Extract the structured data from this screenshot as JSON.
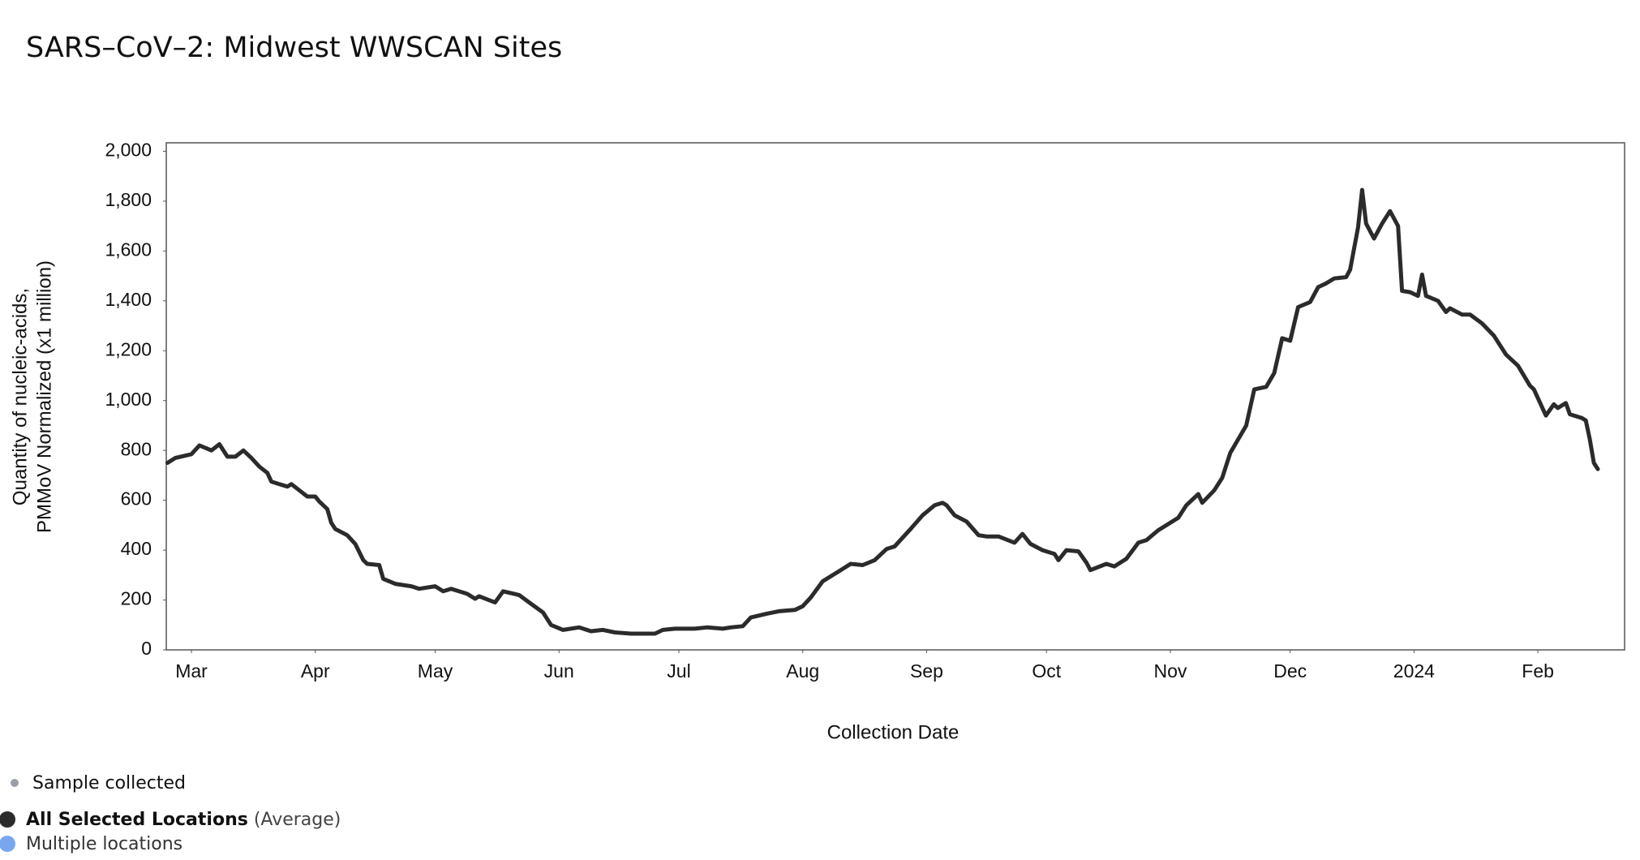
{
  "chart_data": {
    "type": "line",
    "title": "SARS–CoV–2: Midwest WWSCAN Sites",
    "x_label": "Collection Date",
    "y_label": [
      "Quantity of nucleic-acids,",
      "PMMoV Normalized (x1 million)"
    ],
    "xlim": [
      -6.3,
      358.7
    ],
    "xticks": [
      {
        "value": 0,
        "label": "Mar"
      },
      {
        "value": 31,
        "label": "Apr"
      },
      {
        "value": 61,
        "label": "May"
      },
      {
        "value": 92,
        "label": "Jun"
      },
      {
        "value": 122,
        "label": "Jul"
      },
      {
        "value": 153,
        "label": "Aug"
      },
      {
        "value": 184,
        "label": "Sep"
      },
      {
        "value": 214,
        "label": "Oct"
      },
      {
        "value": 245,
        "label": "Nov"
      },
      {
        "value": 275,
        "label": "Dec"
      },
      {
        "value": 306,
        "label": "2024"
      },
      {
        "value": 337,
        "label": "Feb"
      }
    ],
    "ylim": [
      0,
      2034
    ],
    "yticks": [
      0,
      200,
      400,
      600,
      800,
      {
        "value": 1000,
        "label": "1,000"
      },
      {
        "value": 1200,
        "label": "1,200"
      },
      {
        "value": 1400,
        "label": "1,400"
      },
      {
        "value": 1600,
        "label": "1,600"
      },
      {
        "value": 1800,
        "label": "1,800"
      },
      {
        "value": 2000,
        "label": "2,000"
      }
    ],
    "grid": false,
    "series": [
      {
        "name": "All Selected Locations",
        "name_suffix": "(Average)",
        "color": "#2b2b2b",
        "x": [
          -6,
          -4,
          0,
          2,
          5,
          7,
          9,
          11,
          13,
          15,
          17,
          19,
          20,
          22,
          24,
          25,
          27,
          29,
          31,
          32,
          34,
          35,
          36,
          39,
          41,
          43,
          44,
          47,
          48,
          51,
          55,
          57,
          61,
          63,
          65,
          69,
          71,
          72,
          76,
          78,
          82,
          85,
          88,
          90,
          93,
          97,
          100,
          103,
          106,
          110,
          116,
          118,
          121,
          126,
          129,
          133,
          135,
          138,
          140,
          144,
          147,
          151,
          153,
          155,
          158,
          162,
          165,
          168,
          171,
          174,
          176,
          180,
          183,
          186,
          188,
          189,
          191,
          194,
          197,
          199,
          202,
          206,
          208,
          210,
          213,
          216,
          217,
          219,
          222,
          224,
          225,
          229,
          231,
          234,
          237,
          239,
          242,
          244,
          247,
          249,
          252,
          253,
          256,
          258,
          260,
          264,
          266,
          269,
          271,
          273,
          275,
          277,
          280,
          282,
          284,
          286,
          289,
          290,
          292,
          293,
          294,
          296,
          298,
          300,
          302,
          303,
          305,
          307,
          308,
          309,
          312,
          314,
          315,
          318,
          320,
          323,
          326,
          329,
          332,
          335,
          336,
          339,
          341,
          342,
          344,
          345,
          348,
          349,
          350,
          351,
          352
        ],
        "values": [
          750,
          770,
          785,
          820,
          800,
          825,
          775,
          775,
          800,
          770,
          735,
          710,
          675,
          665,
          655,
          665,
          640,
          615,
          615,
          595,
          565,
          510,
          485,
          460,
          425,
          360,
          345,
          340,
          285,
          265,
          255,
          245,
          255,
          235,
          245,
          225,
          205,
          215,
          190,
          235,
          220,
          185,
          150,
          100,
          80,
          90,
          75,
          80,
          70,
          65,
          65,
          80,
          85,
          85,
          90,
          85,
          90,
          95,
          130,
          145,
          155,
          160,
          175,
          210,
          275,
          315,
          345,
          340,
          360,
          405,
          415,
          485,
          540,
          580,
          590,
          580,
          540,
          515,
          460,
          455,
          455,
          430,
          465,
          425,
          400,
          385,
          360,
          400,
          395,
          350,
          320,
          345,
          335,
          365,
          430,
          440,
          480,
          500,
          530,
          580,
          625,
          590,
          640,
          690,
          790,
          900,
          1045,
          1055,
          1110,
          1250,
          1240,
          1375,
          1395,
          1455,
          1470,
          1490,
          1495,
          1525,
          1695,
          1845,
          1710,
          1650,
          1710,
          1760,
          1700,
          1440,
          1435,
          1420,
          1505,
          1420,
          1400,
          1355,
          1370,
          1345,
          1345,
          1310,
          1260,
          1185,
          1140,
          1060,
          1045,
          940,
          985,
          970,
          990,
          945,
          930,
          920,
          845,
          750,
          725
        ]
      }
    ],
    "legend_items": [
      {
        "label": "Sample collected",
        "color": "#9a9ea6"
      },
      {
        "label": "Multiple locations",
        "color": "#7aa6f0"
      }
    ]
  }
}
